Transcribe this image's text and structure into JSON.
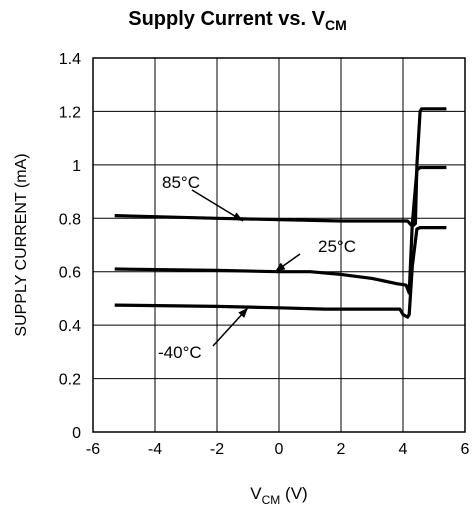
{
  "chart_data": {
    "type": "line",
    "title": "Supply Current vs. V",
    "title_sub": "CM",
    "xlabel": "V",
    "xlabel_sub": "CM",
    "xlabel_unit": " (V)",
    "ylabel": "SUPPLY CURRENT (mA)",
    "xlim": [
      -6,
      6
    ],
    "ylim": [
      0,
      1.4
    ],
    "xticks": [
      "-6",
      "-4",
      "-2",
      "0",
      "2",
      "4",
      "6"
    ],
    "yticks": [
      "0",
      "0.2",
      "0.4",
      "0.6",
      "0.8",
      "1",
      "1.2",
      "1.4"
    ],
    "grid": true,
    "legend": "none",
    "series": [
      {
        "name": "85°C",
        "x": [
          -5.3,
          -2,
          0,
          2,
          3.8,
          4.15,
          4.3,
          4.4,
          4.45,
          4.55,
          4.6,
          5.4
        ],
        "y": [
          0.81,
          0.8,
          0.795,
          0.79,
          0.79,
          0.79,
          0.77,
          0.78,
          1.0,
          1.2,
          1.21,
          1.21
        ]
      },
      {
        "name": "25°C",
        "x": [
          -5.3,
          -2,
          0,
          1,
          2,
          3,
          3.8,
          4.1,
          4.2,
          4.3,
          4.45,
          4.55,
          5.4
        ],
        "y": [
          0.61,
          0.605,
          0.6,
          0.6,
          0.59,
          0.575,
          0.555,
          0.55,
          0.52,
          0.78,
          0.98,
          0.99,
          0.99
        ]
      },
      {
        "name": "-40°C",
        "x": [
          -5.3,
          -2,
          0,
          1.5,
          3.9,
          4.0,
          4.15,
          4.2,
          4.3,
          4.45,
          4.55,
          5.4
        ],
        "y": [
          0.475,
          0.47,
          0.465,
          0.46,
          0.46,
          0.44,
          0.43,
          0.44,
          0.62,
          0.76,
          0.765,
          0.765
        ]
      }
    ],
    "annotations": [
      {
        "text": "85°C",
        "x": -1.2,
        "y": 0.79
      },
      {
        "text": "25°C",
        "x": -0.1,
        "y": 0.62
      },
      {
        "text": "-40°C",
        "x": -1.2,
        "y": 0.46
      }
    ]
  }
}
